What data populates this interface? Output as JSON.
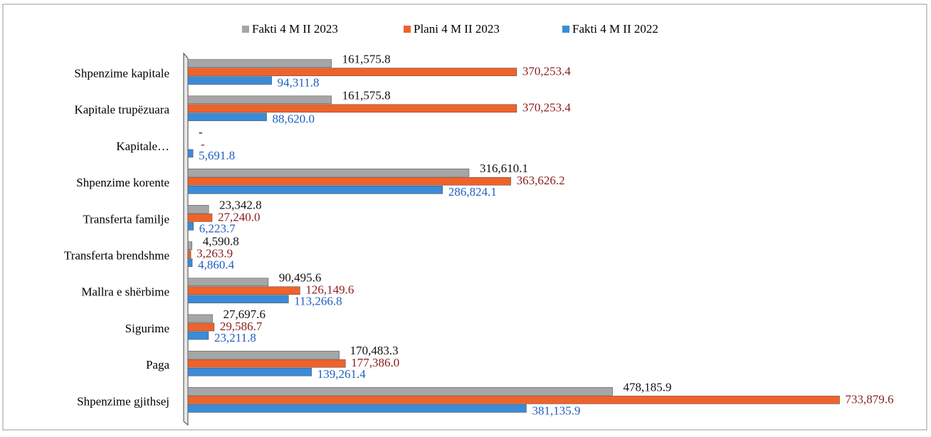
{
  "chart_data": {
    "type": "hbar",
    "categories": [
      "Shpenzime kapitale",
      "Kapitale trupëzuara",
      "Kapitale…",
      "Shpenzime korente",
      "Transferta familje",
      "Transferta brendshme",
      "Mallra e shërbime",
      "Sigurime",
      "Paga",
      "Shpenzime gjithsej"
    ],
    "series": [
      {
        "name": "Fakti 4 M II 2023",
        "color": "#a6a6a6",
        "label_color": "#111111",
        "values": [
          161575.8,
          161575.8,
          null,
          316610.1,
          23342.8,
          4590.8,
          90495.6,
          27697.6,
          170483.3,
          478185.9
        ],
        "value_labels": [
          "161,575.8",
          "161,575.8",
          "-",
          "316,610.1",
          "23,342.8",
          "4,590.8",
          "90,495.6",
          "27,697.6",
          "170,483.3",
          "478,185.9"
        ]
      },
      {
        "name": "Plani 4 M II 2023",
        "color": "#f0622a",
        "label_color": "#8b1c1c",
        "values": [
          370253.4,
          370253.4,
          null,
          363626.2,
          27240.0,
          3263.9,
          126149.6,
          29586.7,
          177386.0,
          733879.6
        ],
        "value_labels": [
          "370,253.4",
          "370,253.4",
          "-",
          "363,626.2",
          "27,240.0",
          "3,263.9",
          "126,149.6",
          "29,586.7",
          "177,386.0",
          "733,879.6"
        ]
      },
      {
        "name": "Fakti 4 M II 2022",
        "color": "#3b8bd8",
        "label_color": "#1f5fbf",
        "values": [
          94311.8,
          88620.0,
          5691.8,
          286824.1,
          6223.7,
          4860.4,
          113266.8,
          23211.8,
          139261.4,
          381135.9
        ],
        "value_labels": [
          "94,311.8",
          "88,620.0",
          "5,691.8",
          "286,824.1",
          "6,223.7",
          "4,860.4",
          "113,266.8",
          "23,211.8",
          "139,261.4",
          "381,135.9"
        ]
      }
    ],
    "xlim": [
      0,
      800000
    ],
    "legend": "top"
  }
}
